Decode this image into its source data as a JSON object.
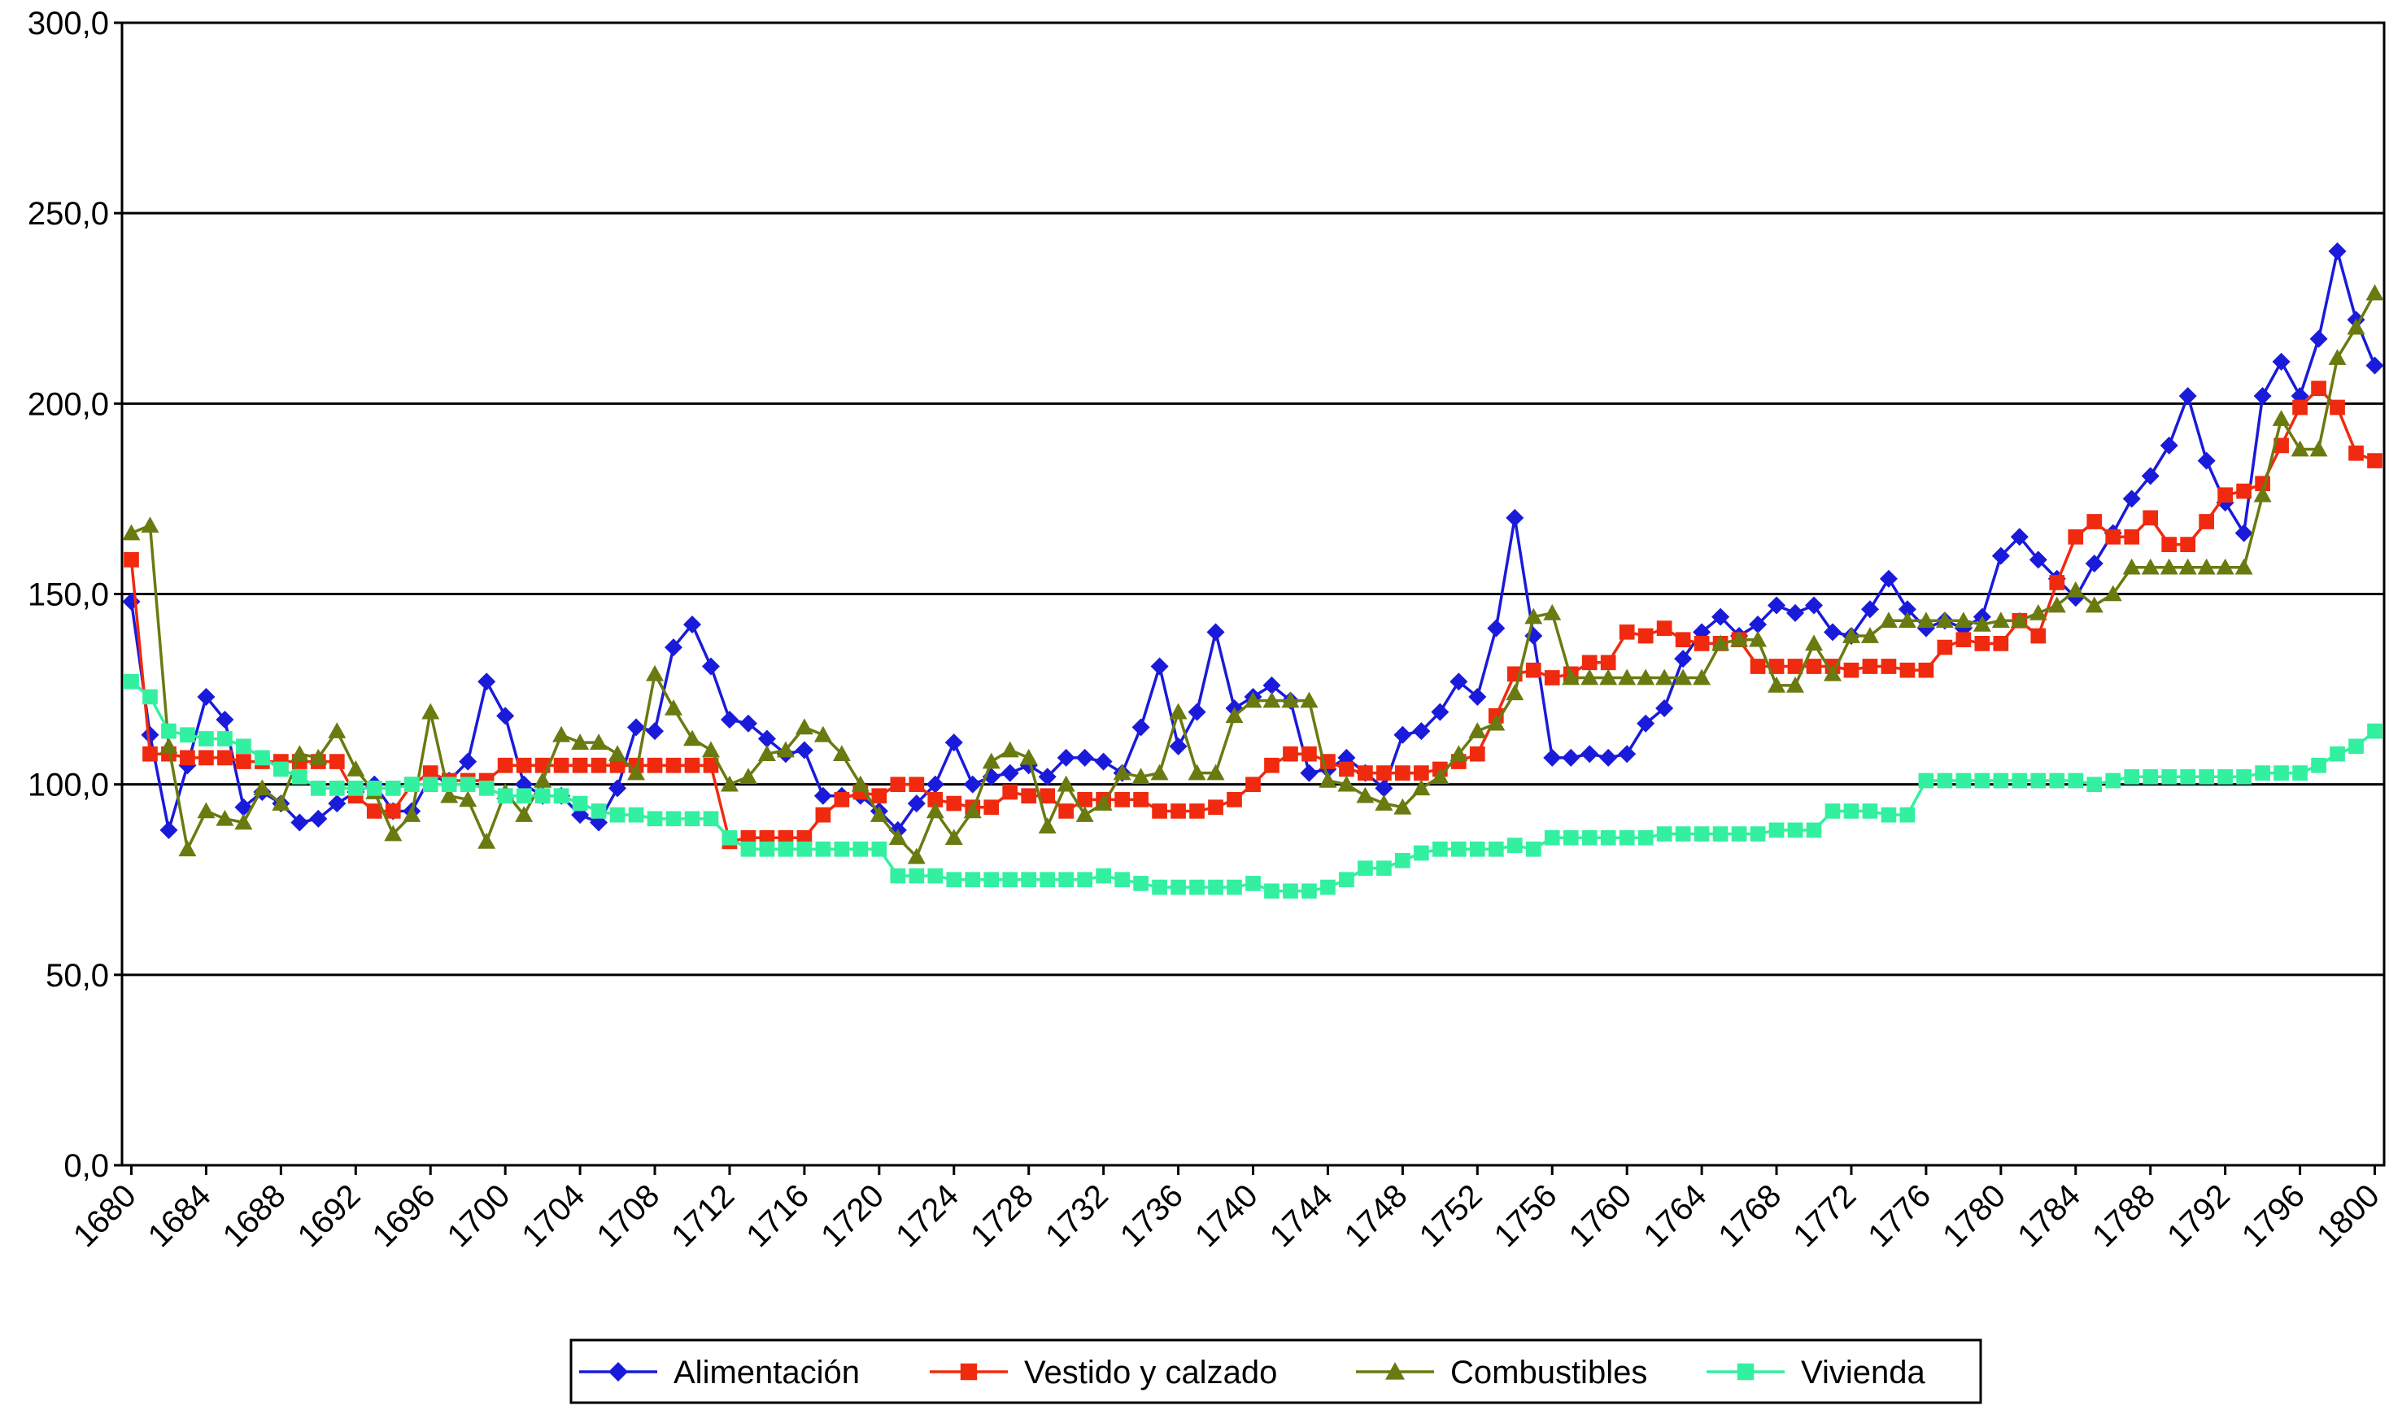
{
  "chart_data": {
    "type": "line",
    "x": [
      1680,
      1681,
      1682,
      1683,
      1684,
      1685,
      1686,
      1687,
      1688,
      1689,
      1690,
      1691,
      1692,
      1693,
      1694,
      1695,
      1696,
      1697,
      1698,
      1699,
      1700,
      1701,
      1702,
      1703,
      1704,
      1705,
      1706,
      1707,
      1708,
      1709,
      1710,
      1711,
      1712,
      1713,
      1714,
      1715,
      1716,
      1717,
      1718,
      1719,
      1720,
      1721,
      1722,
      1723,
      1724,
      1725,
      1726,
      1727,
      1728,
      1729,
      1730,
      1731,
      1732,
      1733,
      1734,
      1735,
      1736,
      1737,
      1738,
      1739,
      1740,
      1741,
      1742,
      1743,
      1744,
      1745,
      1746,
      1747,
      1748,
      1749,
      1750,
      1751,
      1752,
      1753,
      1754,
      1755,
      1756,
      1757,
      1758,
      1759,
      1760,
      1761,
      1762,
      1763,
      1764,
      1765,
      1766,
      1767,
      1768,
      1769,
      1770,
      1771,
      1772,
      1773,
      1774,
      1775,
      1776,
      1777,
      1778,
      1779,
      1780,
      1781,
      1782,
      1783,
      1784,
      1785,
      1786,
      1787,
      1788,
      1789,
      1790,
      1791,
      1792,
      1793,
      1794,
      1795,
      1796,
      1797,
      1798,
      1799,
      1800
    ],
    "xlim": [
      1679.5,
      1800.5
    ],
    "xticks": [
      1680,
      1684,
      1688,
      1692,
      1696,
      1700,
      1704,
      1708,
      1712,
      1716,
      1720,
      1724,
      1728,
      1732,
      1736,
      1740,
      1744,
      1748,
      1752,
      1756,
      1760,
      1764,
      1768,
      1772,
      1776,
      1780,
      1784,
      1788,
      1792,
      1796,
      1800
    ],
    "ylim": [
      0,
      300
    ],
    "yticks": [
      {
        "value": 0,
        "label": "0,0"
      },
      {
        "value": 50,
        "label": "50,0"
      },
      {
        "value": 100,
        "label": "100,0"
      },
      {
        "value": 150,
        "label": "150,0"
      },
      {
        "value": 200,
        "label": "200,0"
      },
      {
        "value": 250,
        "label": "250,0"
      },
      {
        "value": 300,
        "label": "300,0"
      }
    ],
    "grid": true,
    "legend": "bottom",
    "series": [
      {
        "name": "Alimentación",
        "color": "#1a1adb",
        "marker": "diamond",
        "values": [
          148,
          113,
          88,
          105,
          123,
          117,
          94,
          98,
          95,
          90,
          91,
          95,
          98,
          100,
          93,
          93,
          102,
          101,
          106,
          127,
          118,
          100,
          97,
          97,
          92,
          90,
          99,
          115,
          114,
          136,
          142,
          131,
          117,
          116,
          112,
          108,
          109,
          97,
          97,
          97,
          93,
          88,
          95,
          100,
          111,
          100,
          102,
          103,
          105,
          102,
          107,
          107,
          106,
          103,
          115,
          131,
          110,
          119,
          140,
          120,
          123,
          126,
          122,
          103,
          104,
          107,
          103,
          99,
          113,
          114,
          119,
          127,
          123,
          141,
          170,
          139,
          107,
          107,
          108,
          107,
          108,
          116,
          120,
          133,
          140,
          144,
          139,
          142,
          147,
          145,
          147,
          140,
          139,
          146,
          154,
          146,
          141,
          143,
          141,
          144,
          160,
          165,
          159,
          154,
          149,
          158,
          166,
          175,
          181,
          189,
          202,
          185,
          174,
          166,
          202,
          211,
          202,
          217,
          240,
          222,
          210
        ]
      },
      {
        "name": "Vestido y calzado",
        "color": "#f02a0e",
        "marker": "square",
        "values": [
          159,
          108,
          108,
          107,
          107,
          107,
          106,
          106,
          106,
          106,
          106,
          106,
          97,
          93,
          93,
          100,
          103,
          101,
          101,
          101,
          105,
          105,
          105,
          105,
          105,
          105,
          105,
          105,
          105,
          105,
          105,
          105,
          85,
          86,
          86,
          86,
          86,
          92,
          96,
          98,
          97,
          100,
          100,
          96,
          95,
          94,
          94,
          98,
          97,
          97,
          93,
          96,
          96,
          96,
          96,
          93,
          93,
          93,
          94,
          96,
          100,
          105,
          108,
          108,
          106,
          104,
          103,
          103,
          103,
          103,
          104,
          106,
          108,
          118,
          129,
          130,
          128,
          129,
          132,
          132,
          140,
          139,
          141,
          138,
          137,
          137,
          138,
          131,
          131,
          131,
          131,
          131,
          130,
          131,
          131,
          130,
          130,
          136,
          138,
          137,
          137,
          143,
          139,
          153,
          165,
          169,
          165,
          165,
          170,
          163,
          163,
          169,
          176,
          177,
          179,
          189,
          199,
          204,
          199,
          187,
          185
        ]
      },
      {
        "name": "Combustibles",
        "color": "#6b7a10",
        "marker": "triangle",
        "values": [
          166,
          168,
          110,
          83,
          93,
          91,
          90,
          99,
          95,
          108,
          107,
          114,
          104,
          98,
          87,
          92,
          119,
          97,
          96,
          85,
          98,
          92,
          101,
          113,
          111,
          111,
          108,
          103,
          129,
          120,
          112,
          109,
          100,
          102,
          108,
          109,
          115,
          113,
          108,
          100,
          92,
          86,
          81,
          93,
          86,
          93,
          106,
          109,
          107,
          89,
          100,
          92,
          95,
          103,
          102,
          103,
          119,
          103,
          103,
          118,
          122,
          122,
          122,
          122,
          101,
          100,
          97,
          95,
          94,
          99,
          102,
          108,
          114,
          116,
          124,
          144,
          145,
          128,
          128,
          128,
          128,
          128,
          128,
          128,
          128,
          137,
          138,
          138,
          126,
          126,
          137,
          129,
          139,
          139,
          143,
          143,
          143,
          143,
          143,
          142,
          143,
          143,
          145,
          147,
          151,
          147,
          150,
          157,
          157,
          157,
          157,
          157,
          157,
          157,
          176,
          196,
          188,
          188,
          212,
          220,
          229
        ]
      },
      {
        "name": "Vivienda",
        "color": "#33f0a0",
        "marker": "square",
        "values": [
          127,
          123,
          114,
          113,
          112,
          112,
          110,
          107,
          104,
          102,
          99,
          99,
          99,
          99,
          99,
          100,
          100,
          100,
          100,
          99,
          97,
          97,
          97,
          97,
          95,
          93,
          92,
          92,
          91,
          91,
          91,
          91,
          86,
          83,
          83,
          83,
          83,
          83,
          83,
          83,
          83,
          76,
          76,
          76,
          75,
          75,
          75,
          75,
          75,
          75,
          75,
          75,
          76,
          75,
          74,
          73,
          73,
          73,
          73,
          73,
          74,
          72,
          72,
          72,
          73,
          75,
          78,
          78,
          80,
          82,
          83,
          83,
          83,
          83,
          84,
          83,
          86,
          86,
          86,
          86,
          86,
          86,
          87,
          87,
          87,
          87,
          87,
          87,
          88,
          88,
          88,
          93,
          93,
          93,
          92,
          92,
          101,
          101,
          101,
          101,
          101,
          101,
          101,
          101,
          101,
          100,
          101,
          102,
          102,
          102,
          102,
          102,
          102,
          102,
          103,
          103,
          103,
          105,
          108,
          110,
          114
        ]
      }
    ]
  }
}
